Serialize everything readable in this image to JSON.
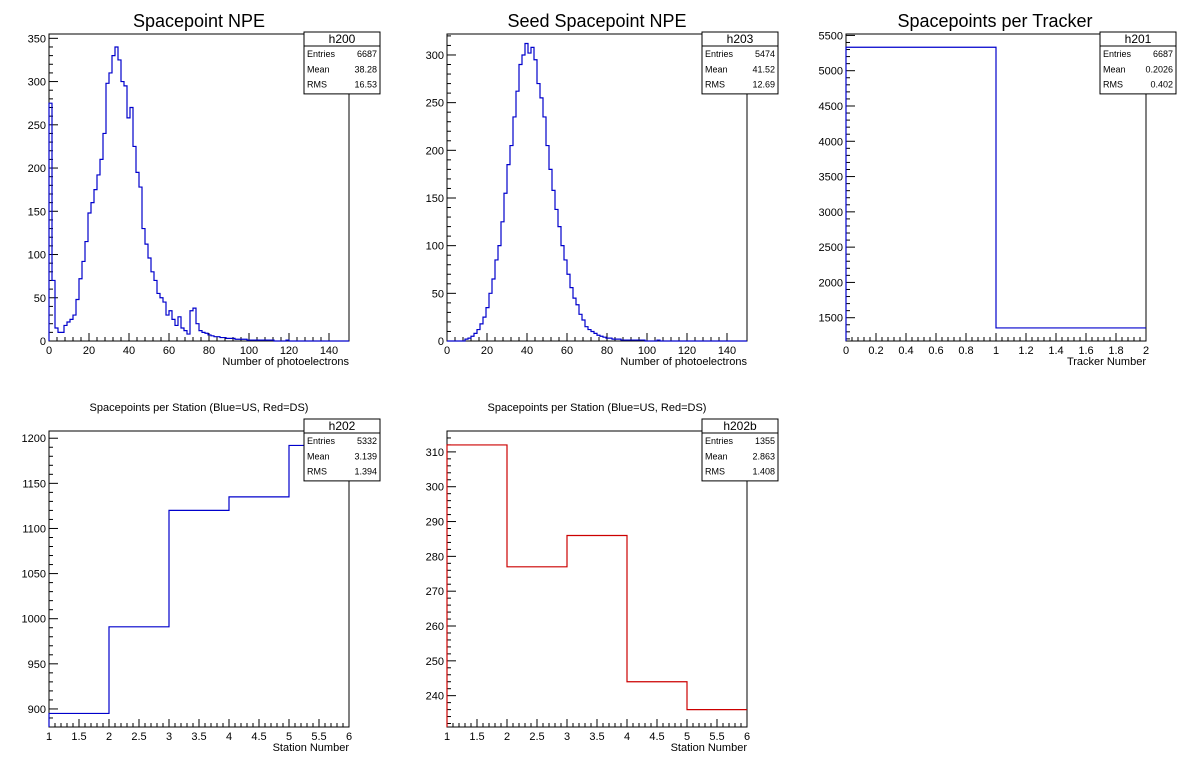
{
  "canvas": {
    "background": "#ffffff"
  },
  "chart_data": [
    {
      "type": "histogram",
      "title": "Spacepoint NPE",
      "xlabel": "Number of photoelectrons",
      "ylabel": "",
      "xlim": [
        0,
        150
      ],
      "ylim": [
        0,
        355
      ],
      "xticks": [
        0,
        20,
        40,
        60,
        80,
        100,
        120,
        140
      ],
      "yticks": [
        0,
        50,
        100,
        150,
        200,
        250,
        300,
        350
      ],
      "line_color": "#0000cc",
      "bin_width": 1.5,
      "values": [
        275,
        70,
        15,
        10,
        10,
        18,
        22,
        25,
        30,
        48,
        72,
        92,
        115,
        148,
        160,
        175,
        192,
        210,
        240,
        298,
        310,
        330,
        340,
        325,
        300,
        295,
        258,
        270,
        225,
        195,
        178,
        130,
        112,
        96,
        80,
        70,
        55,
        50,
        45,
        30,
        35,
        25,
        18,
        28,
        15,
        12,
        8,
        35,
        38,
        20,
        12,
        10,
        9,
        7,
        6,
        5,
        5,
        4,
        4,
        3,
        3,
        3,
        2,
        2,
        2,
        2,
        1,
        1,
        1,
        1,
        1,
        1,
        1,
        1,
        1,
        0,
        0,
        0,
        0,
        1,
        0,
        0,
        0,
        0,
        0,
        0,
        0,
        0,
        0,
        0,
        0,
        0,
        0,
        0,
        0,
        0,
        0,
        0,
        0,
        0
      ],
      "stats": {
        "name": "h200",
        "rows": [
          {
            "label": "Entries",
            "value": "6687"
          },
          {
            "label": "Mean",
            "value": "38.28"
          },
          {
            "label": "RMS",
            "value": "16.53"
          }
        ]
      }
    },
    {
      "type": "histogram",
      "title": "Seed Spacepoint NPE",
      "xlabel": "Number of photoelectrons",
      "ylabel": "",
      "xlim": [
        0,
        150
      ],
      "ylim": [
        0,
        322
      ],
      "xticks": [
        0,
        20,
        40,
        60,
        80,
        100,
        120,
        140
      ],
      "yticks": [
        0,
        50,
        100,
        150,
        200,
        250,
        300
      ],
      "line_color": "#0000cc",
      "bin_width": 1.5,
      "values": [
        0,
        0,
        0,
        0,
        0,
        0,
        2,
        3,
        5,
        8,
        12,
        18,
        25,
        35,
        50,
        65,
        85,
        100,
        125,
        155,
        185,
        205,
        235,
        262,
        290,
        300,
        312,
        302,
        308,
        295,
        270,
        255,
        235,
        205,
        180,
        158,
        138,
        120,
        100,
        85,
        70,
        56,
        45,
        38,
        28,
        22,
        15,
        12,
        10,
        8,
        6,
        5,
        4,
        3,
        3,
        2,
        2,
        2,
        1,
        1,
        1,
        1,
        1,
        1,
        1,
        1,
        0,
        0,
        0,
        0,
        1,
        0,
        0,
        0,
        0,
        0,
        0,
        0,
        0,
        0,
        0,
        0,
        0,
        0,
        0,
        0,
        0,
        0,
        0,
        0,
        0,
        0,
        0,
        0,
        0,
        0,
        0,
        0,
        0,
        0
      ],
      "stats": {
        "name": "h203",
        "rows": [
          {
            "label": "Entries",
            "value": "5474"
          },
          {
            "label": "Mean",
            "value": "41.52"
          },
          {
            "label": "RMS",
            "value": "12.69"
          }
        ]
      }
    },
    {
      "type": "histogram",
      "title": "Spacepoints per Tracker",
      "xlabel": "Tracker Number",
      "ylabel": "",
      "xlim": [
        0,
        2
      ],
      "ylim": [
        1170,
        5520
      ],
      "xticks": [
        0,
        0.2,
        0.4,
        0.6,
        0.8,
        1,
        1.2,
        1.4,
        1.6,
        1.8,
        2
      ],
      "yticks": [
        1500,
        2000,
        2500,
        3000,
        3500,
        4000,
        4500,
        5000,
        5500
      ],
      "line_color": "#0000cc",
      "bin_width": 1,
      "values": [
        5332,
        1355
      ],
      "stats": {
        "name": "h201",
        "rows": [
          {
            "label": "Entries",
            "value": "6687"
          },
          {
            "label": "Mean",
            "value": "0.2026"
          },
          {
            "label": "RMS",
            "value": "0.402"
          }
        ]
      }
    },
    {
      "type": "histogram",
      "title": "Spacepoints per Station (Blue=US, Red=DS)",
      "xlabel": "Station Number",
      "ylabel": "",
      "xlim": [
        1,
        6
      ],
      "ylim": [
        880,
        1208
      ],
      "xticks": [
        1,
        1.5,
        2,
        2.5,
        3,
        3.5,
        4,
        4.5,
        5,
        5.5,
        6
      ],
      "yticks": [
        900,
        950,
        1000,
        1050,
        1100,
        1150,
        1200
      ],
      "line_color": "#0000cc",
      "bin_width": 1,
      "values": [
        895,
        991,
        1120,
        1135,
        1192
      ],
      "stats": {
        "name": "h202",
        "rows": [
          {
            "label": "Entries",
            "value": "5332"
          },
          {
            "label": "Mean",
            "value": "3.139"
          },
          {
            "label": "RMS",
            "value": "1.394"
          }
        ]
      }
    },
    {
      "type": "histogram",
      "title": "Spacepoints per Station (Blue=US, Red=DS)",
      "xlabel": "Station Number",
      "ylabel": "",
      "xlim": [
        1,
        6
      ],
      "ylim": [
        231,
        316
      ],
      "xticks": [
        1,
        1.5,
        2,
        2.5,
        3,
        3.5,
        4,
        4.5,
        5,
        5.5,
        6
      ],
      "yticks": [
        240,
        250,
        260,
        270,
        280,
        290,
        300,
        310
      ],
      "line_color": "#cc0000",
      "bin_width": 1,
      "values": [
        312,
        277,
        286,
        244,
        236
      ],
      "stats": {
        "name": "h202b",
        "rows": [
          {
            "label": "Entries",
            "value": "1355"
          },
          {
            "label": "Mean",
            "value": "2.863"
          },
          {
            "label": "RMS",
            "value": "1.408"
          }
        ]
      }
    }
  ]
}
